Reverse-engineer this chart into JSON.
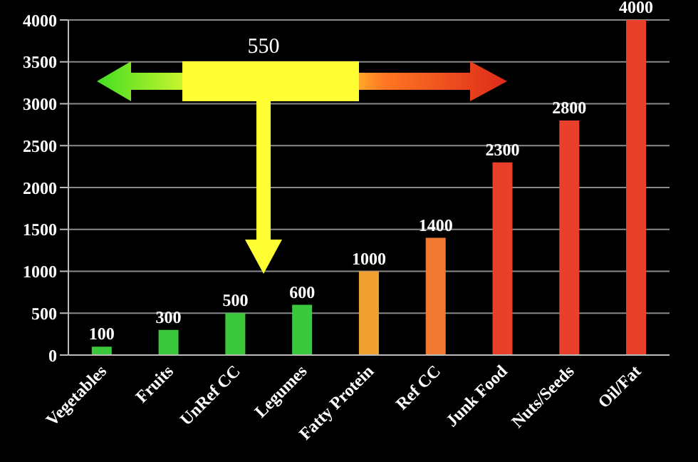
{
  "chart_data": {
    "type": "bar",
    "categories": [
      "Vegetables",
      "Fruits",
      "UnRef CC",
      "Legumes",
      "Fatty Protein",
      "Ref CC",
      "Junk Food",
      "Nuts/Seeds",
      "Oil/Fat"
    ],
    "values": [
      100,
      300,
      500,
      600,
      1000,
      1400,
      2300,
      2800,
      4000
    ],
    "colors": [
      "#3cc83c",
      "#3cc83c",
      "#3cc83c",
      "#3cc83c",
      "#f0a030",
      "#f07830",
      "#e8402a",
      "#e8402a",
      "#e8402a"
    ],
    "ylim": [
      0,
      4000
    ],
    "yticks": [
      0,
      500,
      1000,
      1500,
      2000,
      2500,
      3000,
      3500,
      4000
    ],
    "grid": "y",
    "data_labels": true,
    "annotations": [
      "550"
    ]
  }
}
